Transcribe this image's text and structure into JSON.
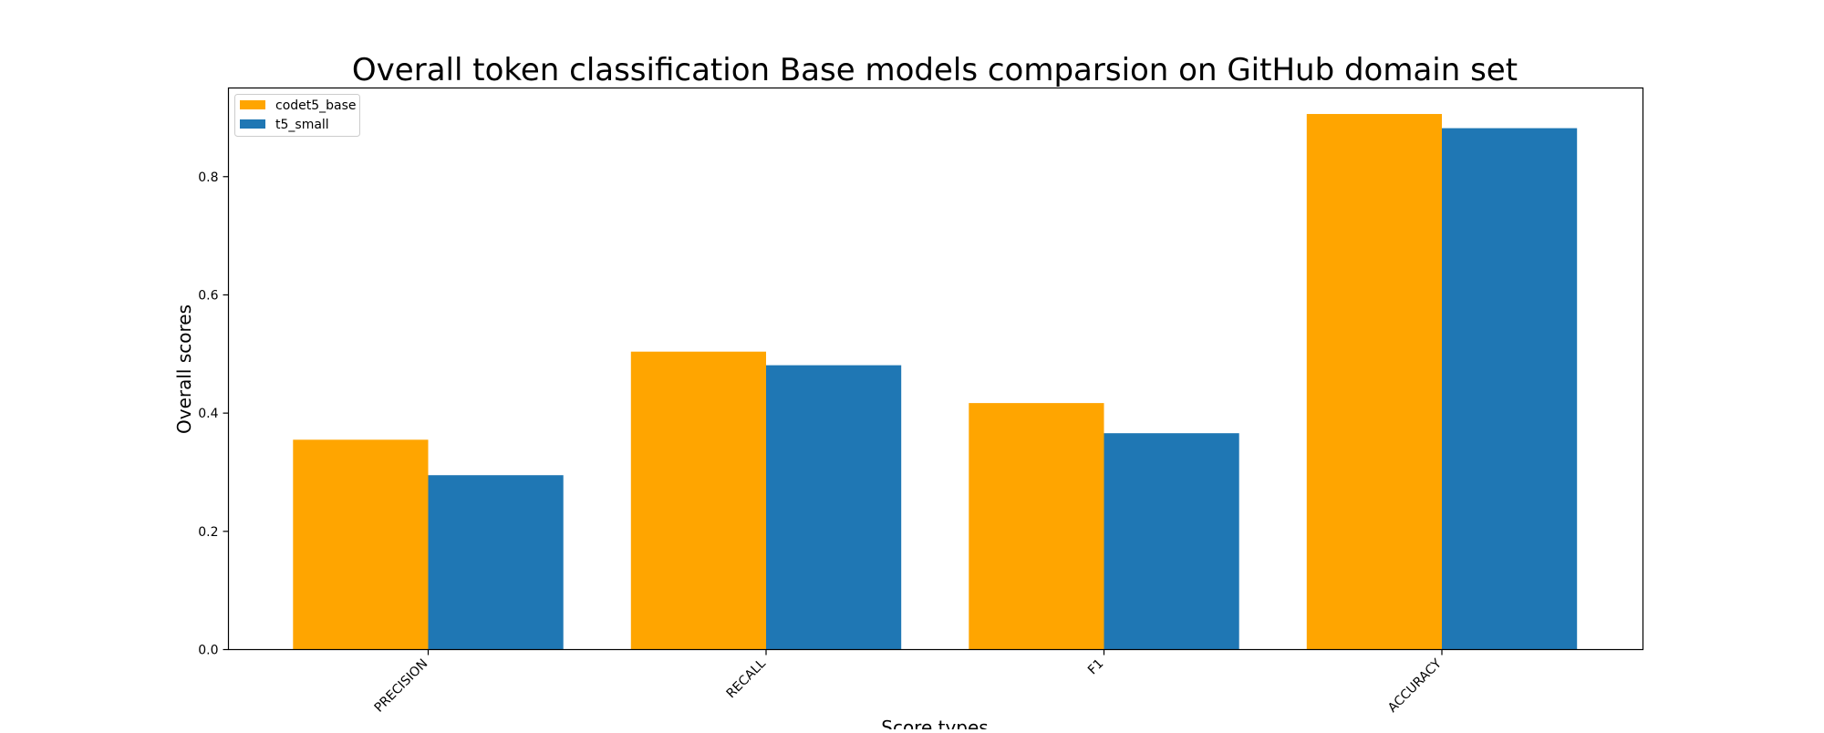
{
  "chart_data": {
    "type": "bar",
    "title": "Overall token classification Base models comparsion on GitHub domain set",
    "xlabel": "Score types",
    "ylabel": "Overall scores",
    "categories": [
      "PRECISION",
      "RECALL",
      "F1",
      "ACCURACY"
    ],
    "series": [
      {
        "name": "codet5_base",
        "color": "#ffa500",
        "values": [
          0.355,
          0.504,
          0.417,
          0.906
        ]
      },
      {
        "name": "t5_small",
        "color": "#1f77b4",
        "values": [
          0.295,
          0.481,
          0.366,
          0.882
        ]
      }
    ],
    "ylim": [
      0,
      0.95
    ],
    "yticks": [
      0.0,
      0.2,
      0.4,
      0.6,
      0.8
    ],
    "ytick_labels": [
      "0.0",
      "0.2",
      "0.4",
      "0.6",
      "0.8"
    ],
    "grid": false,
    "legend_position": "top-left"
  }
}
